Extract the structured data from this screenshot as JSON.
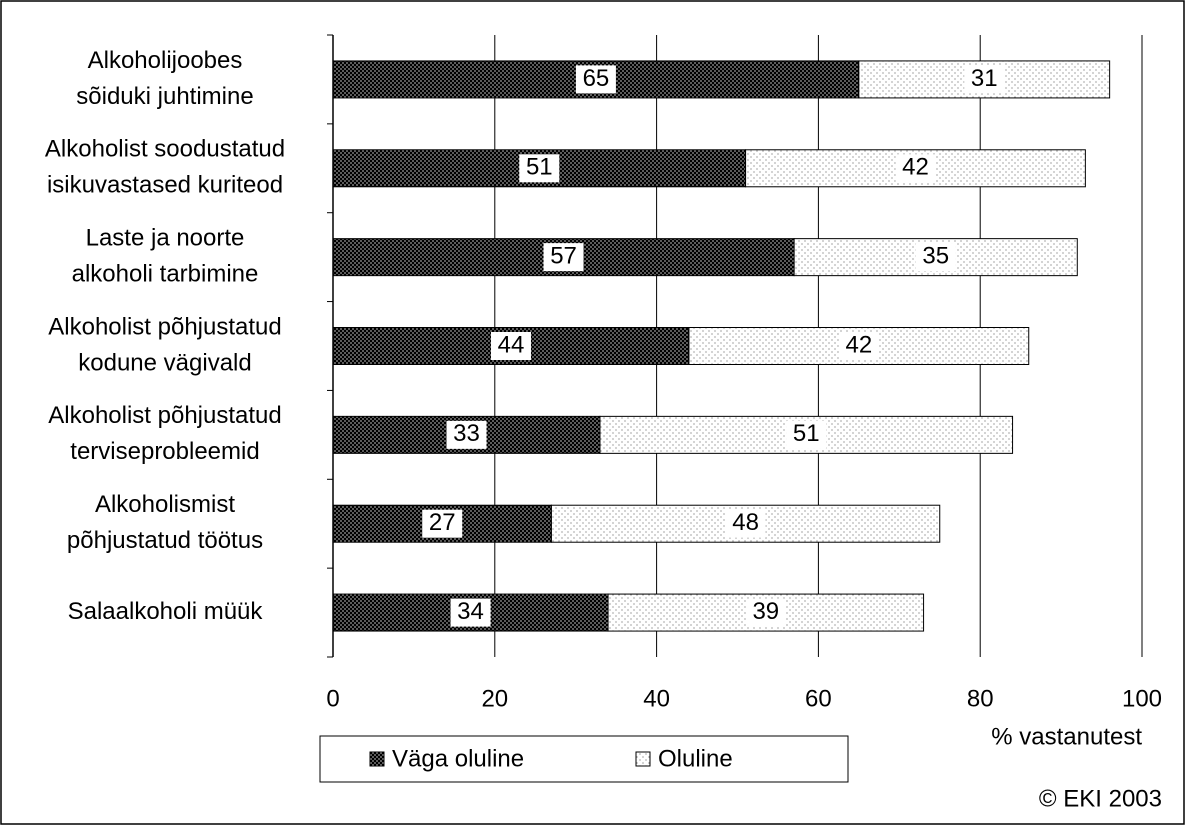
{
  "chart_data": {
    "type": "bar_stacked_horizontal",
    "categories": [
      [
        "Alkoholijoobes",
        "sõiduki juhtimine"
      ],
      [
        "Alkoholist soodustatud",
        "isikuvastased kuriteod"
      ],
      [
        "Laste ja noorte",
        "alkoholi tarbimine"
      ],
      [
        "Alkoholist põhjustatud",
        "kodune vägivald"
      ],
      [
        "Alkoholist põhjustatud",
        "terviseprobleemid"
      ],
      [
        "Alkoholismist",
        "põhjustatud töötus"
      ],
      [
        "Salaalkoholi müük"
      ]
    ],
    "series": [
      {
        "name": "Väga oluline",
        "color": "#000000",
        "values": [
          65,
          51,
          57,
          44,
          33,
          27,
          34
        ]
      },
      {
        "name": "Oluline",
        "color": "#ffffff",
        "values": [
          31,
          42,
          35,
          42,
          51,
          48,
          39
        ]
      }
    ],
    "xlim": [
      0,
      100
    ],
    "xticks": [
      0,
      20,
      40,
      60,
      80,
      100
    ],
    "grid": true,
    "x_label": "% vastanutest",
    "annotation": "© EKI 2003",
    "legend": "bottom"
  }
}
